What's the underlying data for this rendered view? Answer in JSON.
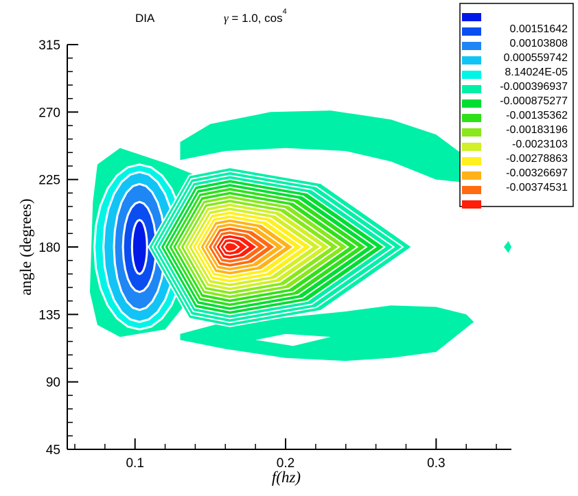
{
  "chart_data": {
    "type": "contour",
    "title": "DIA",
    "subtitle": {
      "gamma_symbol": "γ",
      "text": " = 1.0, cos",
      "superscript": "4"
    },
    "xlabel": "f(hz)",
    "ylabel": "angle (degrees)",
    "xlim": [
      0.055,
      0.35
    ],
    "ylim": [
      45,
      315
    ],
    "x_ticks": [
      {
        "value": 0.1,
        "label": "0.1"
      },
      {
        "value": 0.2,
        "label": "0.2"
      },
      {
        "value": 0.3,
        "label": "0.3"
      }
    ],
    "y_ticks": [
      {
        "value": 45,
        "label": "45"
      },
      {
        "value": 90,
        "label": "90"
      },
      {
        "value": 135,
        "label": "135"
      },
      {
        "value": 180,
        "label": "180"
      },
      {
        "value": 225,
        "label": "225"
      },
      {
        "value": 270,
        "label": "270"
      },
      {
        "value": 315,
        "label": "315"
      }
    ],
    "legend_position": "top-right",
    "legend": [
      {
        "label": "",
        "color": "#0019e6"
      },
      {
        "label": "0.00151642",
        "color": "#0a4df0"
      },
      {
        "label": "0.00103808",
        "color": "#1e86f5"
      },
      {
        "label": "0.000559742",
        "color": "#12c4f5"
      },
      {
        "label": "8.14024E-05",
        "color": "#00f5e6"
      },
      {
        "label": "-0.000396937",
        "color": "#00f0a8"
      },
      {
        "label": "-0.000875277",
        "color": "#00dd33"
      },
      {
        "label": "-0.00135362",
        "color": "#30e019"
      },
      {
        "label": "-0.00183196",
        "color": "#88e81c"
      },
      {
        "label": "-0.0023103",
        "color": "#d2f028"
      },
      {
        "label": "-0.00278863",
        "color": "#fff01e"
      },
      {
        "label": "-0.00326697",
        "color": "#ffb219"
      },
      {
        "label": "-0.00374531",
        "color": "#ff6a12"
      },
      {
        "label": "",
        "color": "#ff1e0a"
      }
    ],
    "features": [
      {
        "name": "positive-lobe",
        "x": 0.1,
        "y": 180,
        "level": 0.00151642
      },
      {
        "name": "negative-peak",
        "x": 0.16,
        "y": 180,
        "level": -0.00374531
      },
      {
        "name": "upper-green-band",
        "x": 0.25,
        "y": 250,
        "level": 8.14024e-05
      },
      {
        "name": "lower-green-band",
        "x": 0.25,
        "y": 115,
        "level": 8.14024e-05
      }
    ]
  }
}
